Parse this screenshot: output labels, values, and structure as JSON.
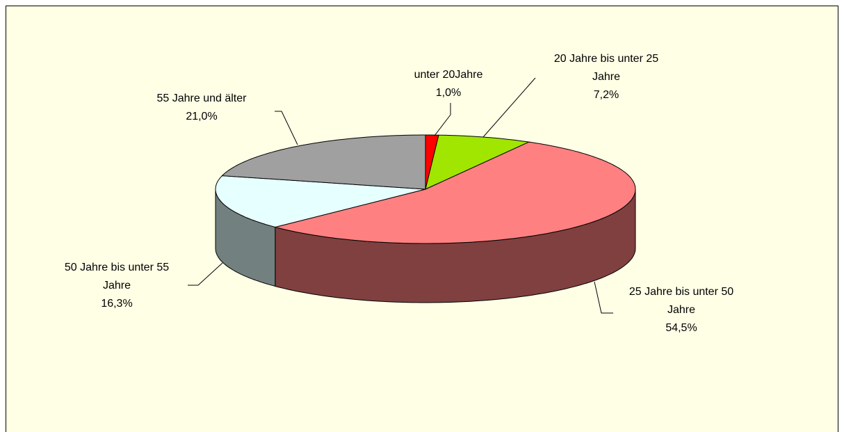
{
  "chart_data": {
    "type": "pie3d",
    "categories": [
      "unter 20Jahre",
      "20 Jahre bis unter 25 Jahre",
      "25 Jahre bis unter 50 Jahre",
      "50 Jahre bis unter 55 Jahre",
      "55 Jahre und älter"
    ],
    "values": [
      1.0,
      7.2,
      54.5,
      16.3,
      21.0
    ],
    "value_labels": [
      "1,0%",
      "7,2%",
      "54,5%",
      "16,3%",
      "21,0%"
    ],
    "colors": [
      "#ff0000",
      "#a0e600",
      "#ff8080",
      "#e6ffff",
      "#a0a0a0"
    ]
  }
}
